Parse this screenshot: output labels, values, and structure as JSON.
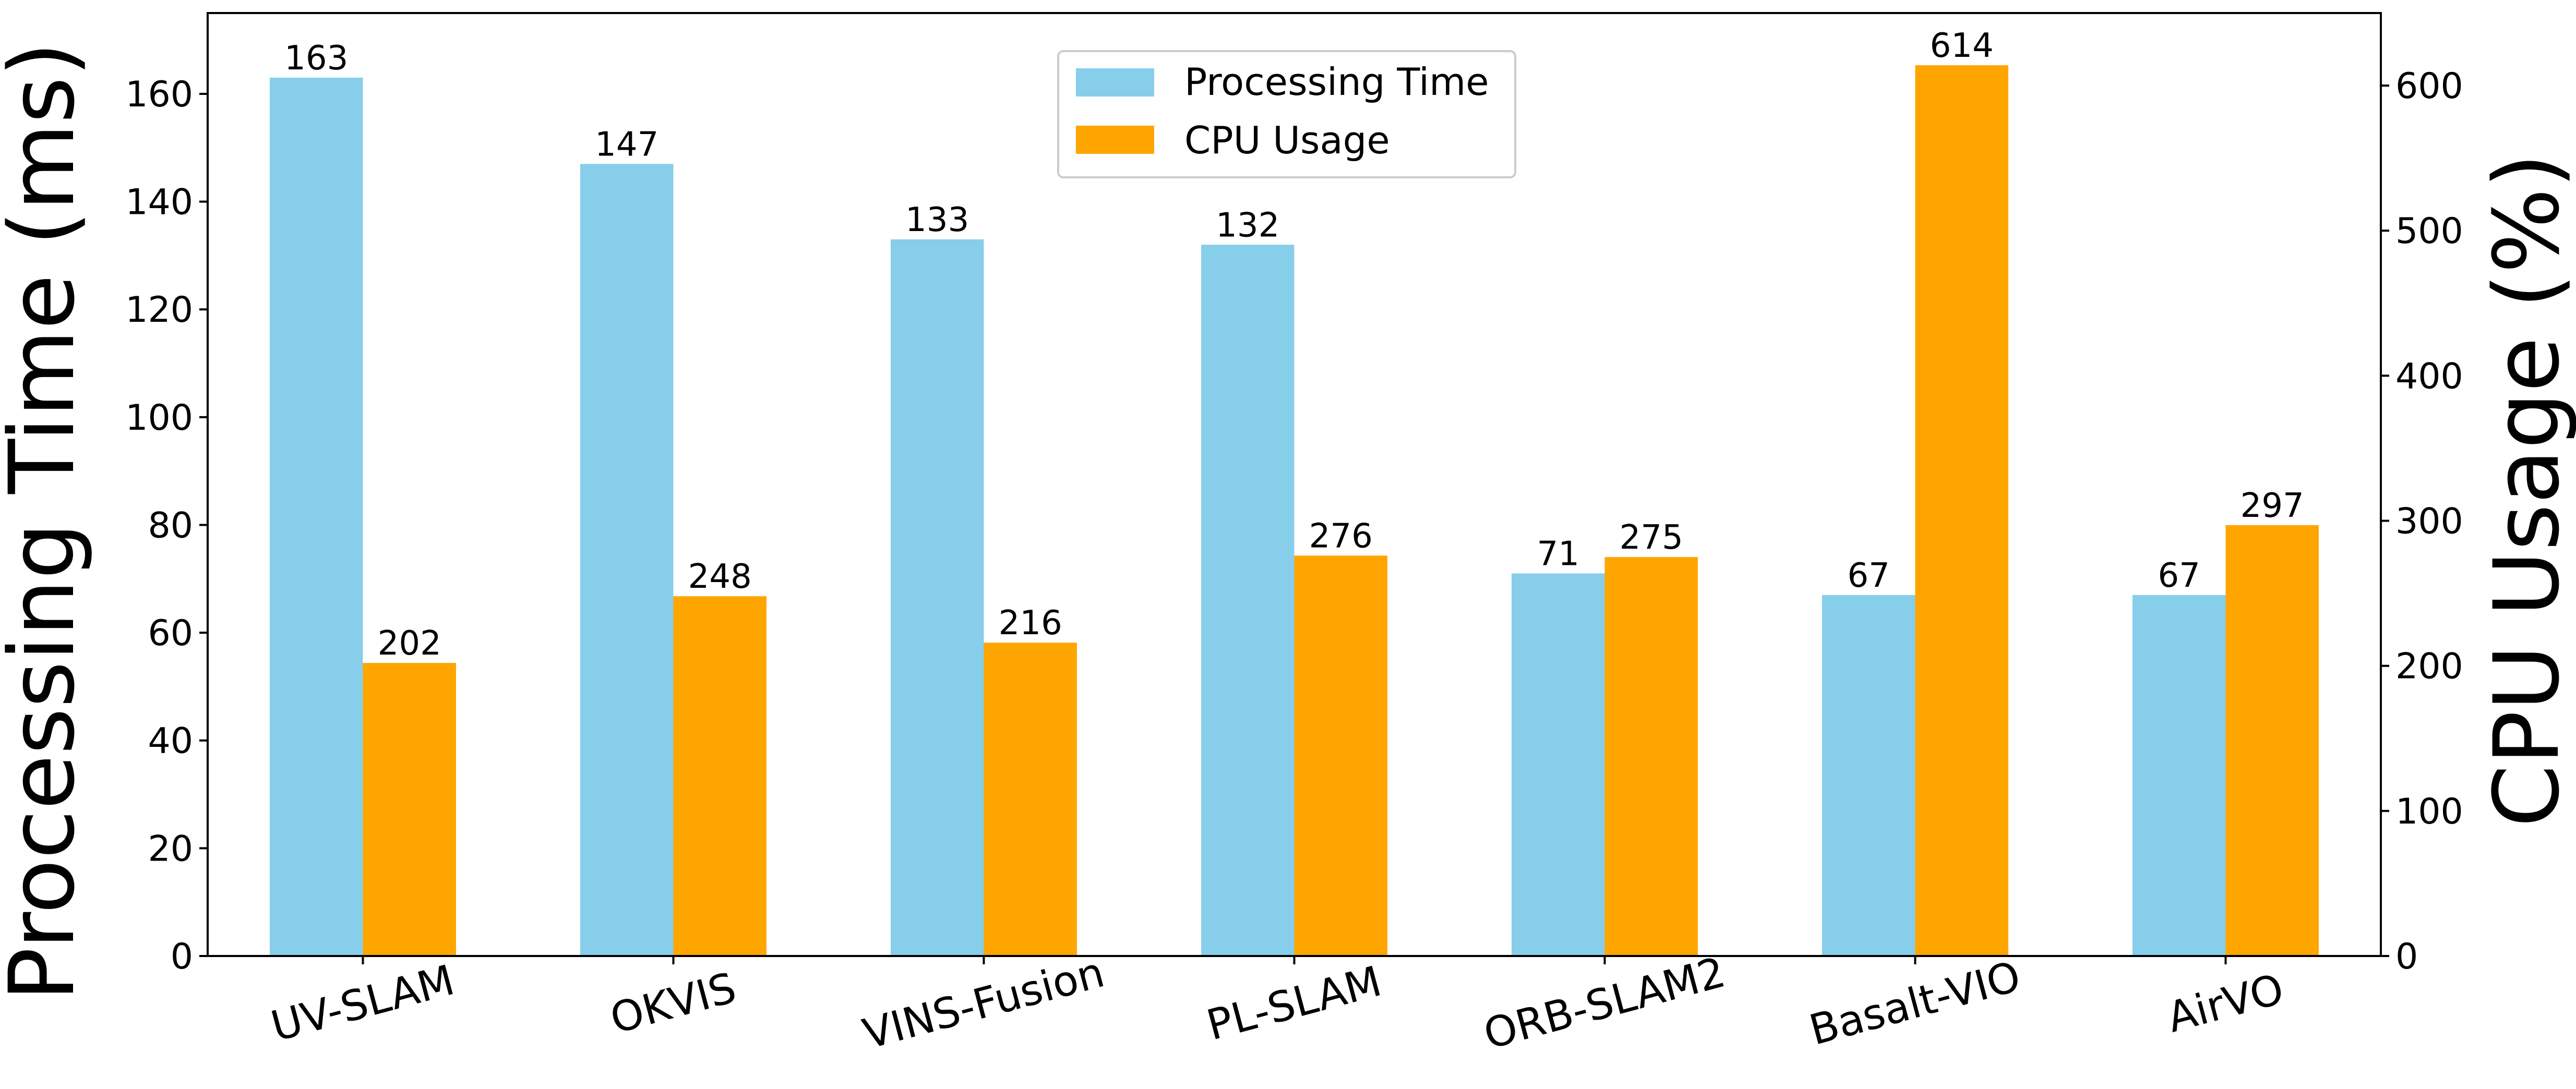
{
  "chart_data": {
    "type": "bar",
    "categories": [
      "UV-SLAM",
      "OKVIS",
      "VINS-Fusion",
      "PL-SLAM",
      "ORB-SLAM2",
      "Basalt-VIO",
      "AirVO"
    ],
    "series": [
      {
        "name": "Processing Time",
        "axis": "left",
        "color": "#87CEEB",
        "values": [
          163,
          147,
          133,
          132,
          71,
          67,
          67
        ],
        "labels": [
          "163",
          "147",
          "133",
          "132",
          "71",
          "67",
          "67"
        ]
      },
      {
        "name": "CPU Usage",
        "axis": "right",
        "color": "#FFA500",
        "values": [
          202,
          248,
          216,
          276,
          275,
          614,
          297
        ],
        "labels": [
          "202",
          "248",
          "216",
          "276",
          "275",
          "614",
          "297"
        ]
      }
    ],
    "ylabel_left": "Processing Time (ms)",
    "ylabel_right": "CPU Usage (%)",
    "ylim_left": [
      0,
      175
    ],
    "ylim_right": [
      0,
      650
    ],
    "yticks_left": [
      0,
      20,
      40,
      60,
      80,
      100,
      120,
      140,
      160
    ],
    "yticks_left_labels": [
      "0",
      "20",
      "40",
      "60",
      "80",
      "100",
      "120",
      "140",
      "160"
    ],
    "yticks_right": [
      0,
      100,
      200,
      300,
      400,
      500,
      600
    ],
    "yticks_right_labels": [
      "0",
      "100",
      "200",
      "300",
      "400",
      "500",
      "600"
    ],
    "xtick_rotation_deg": 15,
    "legend": {
      "position": "top-center",
      "entries": [
        "Processing Time",
        "CPU Usage"
      ]
    }
  }
}
